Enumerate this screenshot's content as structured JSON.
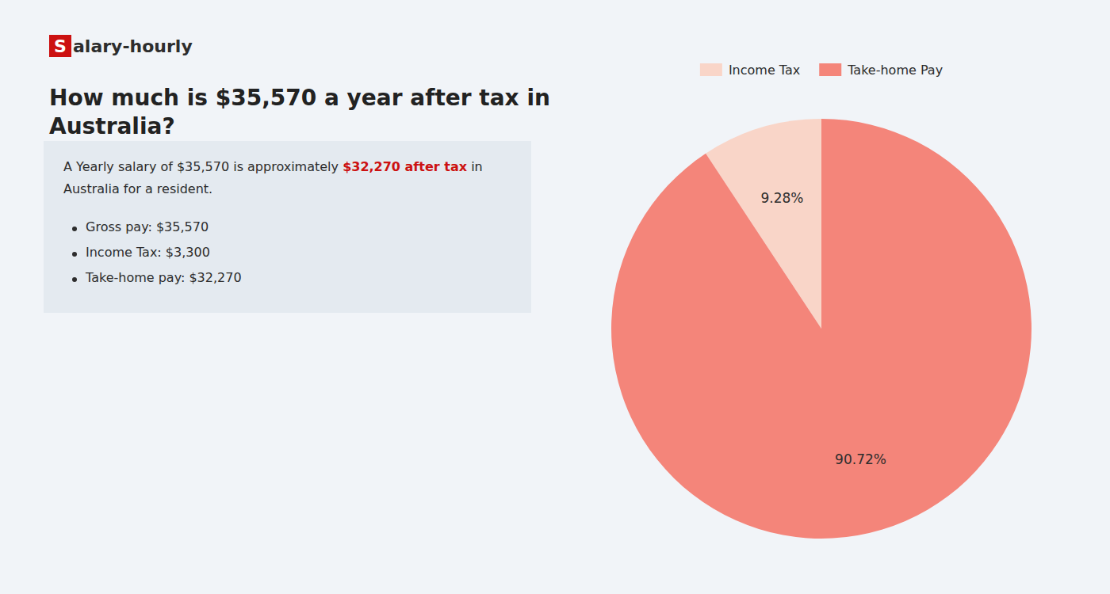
{
  "chart_data": {
    "type": "pie",
    "title": [
      "How much is $35,570 a year after tax in",
      "Australia?"
    ],
    "annotations": [
      "S",
      "alary-hourly",
      "A Yearly salary of $35,570 is approximately ",
      "$32,270 after tax",
      " in",
      "Australia for a resident.",
      "Gross pay: $35,570",
      "Income Tax: $3,300",
      "Take-home pay: $32,270"
    ],
    "categories": [
      "Income Tax",
      "Take-home Pay"
    ],
    "values": [
      9.28,
      90.72
    ],
    "value_labels": [
      "9.28%",
      "90.72%"
    ],
    "colors": [
      "#f9d5c8",
      "#f4857a"
    ],
    "data_labels": true,
    "legend": "top"
  }
}
